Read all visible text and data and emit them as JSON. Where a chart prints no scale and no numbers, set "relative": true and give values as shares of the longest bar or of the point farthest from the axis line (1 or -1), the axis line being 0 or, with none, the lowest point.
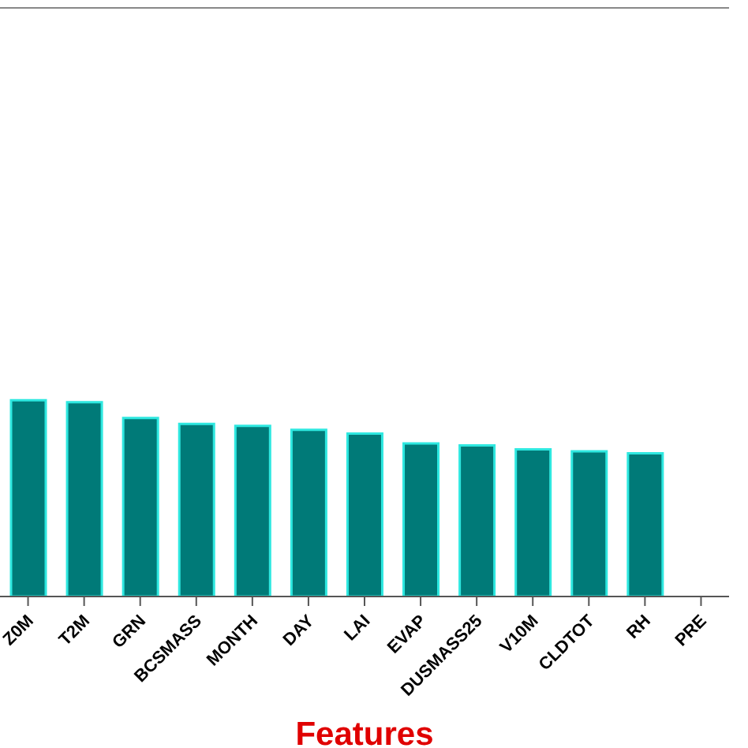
{
  "chart_data": {
    "type": "bar",
    "xlabel": "Features",
    "relative": true,
    "categories": [
      "Z0M",
      "T2M",
      "GRN",
      "BCSMASS",
      "MONTH",
      "DAY",
      "LAI",
      "EVAP",
      "DUSMASS25",
      "V10M",
      "CLDTOT",
      "RH",
      "PRE"
    ],
    "values": [
      1,
      0.99,
      0.91,
      0.88,
      0.87,
      0.85,
      0.83,
      0.78,
      0.77,
      0.75,
      0.74,
      0.73,
      null
    ],
    "color": "#007a78"
  }
}
